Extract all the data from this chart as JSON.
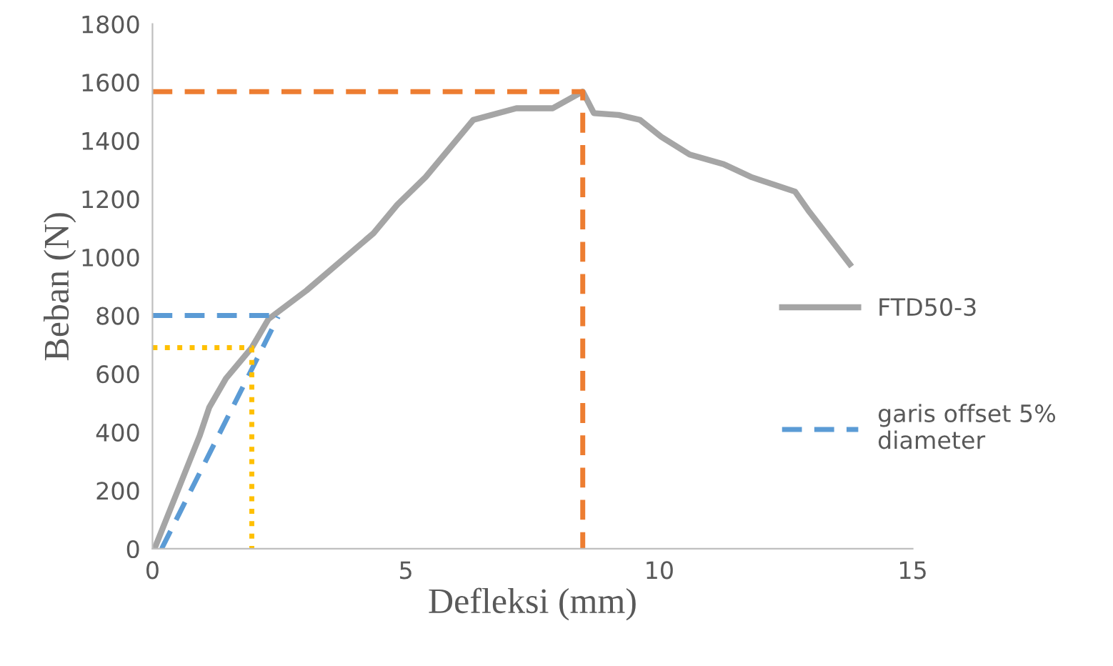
{
  "chart_data": {
    "type": "line",
    "xlabel": "Defleksi (mm)",
    "ylabel": "Beban (N)",
    "xlim": [
      0,
      15
    ],
    "xticks": [
      0,
      5,
      10,
      15
    ],
    "ylim": [
      0,
      1800
    ],
    "yticks": [
      0,
      200,
      400,
      600,
      800,
      1000,
      1200,
      1400,
      1600,
      1800
    ],
    "grid": false,
    "legend": "right",
    "marker": "none",
    "series": [
      {
        "name": "FTD50-3",
        "color": "#a5a5a5",
        "line_style": "solid",
        "x": [
          0.04,
          0.93,
          1.12,
          1.45,
          1.96,
          2.29,
          3.04,
          4.36,
          4.83,
          5.39,
          6.33,
          7.18,
          7.9,
          8.49,
          8.71,
          9.2,
          9.62,
          10.04,
          10.6,
          11.27,
          11.83,
          12.68,
          12.96,
          13.76
        ],
        "values": [
          0,
          387,
          485,
          584,
          690,
          788,
          886,
          1082,
          1180,
          1275,
          1471,
          1511,
          1511,
          1568,
          1494,
          1488,
          1471,
          1413,
          1352,
          1319,
          1274,
          1225,
          1156,
          976
        ]
      },
      {
        "name": "garis offset 5% diameter",
        "color": "#5b9bd5",
        "line_style": "dashed",
        "x": [
          0.18,
          2.48
        ],
        "values": [
          0,
          796
        ]
      },
      {
        "color": "#5b9bd5",
        "line_style": "dashed",
        "x": [
          0,
          2.48
        ],
        "values": [
          800,
          800
        ]
      },
      {
        "color": "#ed7d31",
        "line_style": "dashed",
        "x": [
          0,
          8.49,
          8.49
        ],
        "values": [
          1568,
          1568,
          0
        ]
      },
      {
        "color": "#ffc000",
        "line_style": "dotted",
        "x": [
          0,
          1.96,
          1.96
        ],
        "values": [
          690,
          690,
          0
        ]
      }
    ]
  }
}
